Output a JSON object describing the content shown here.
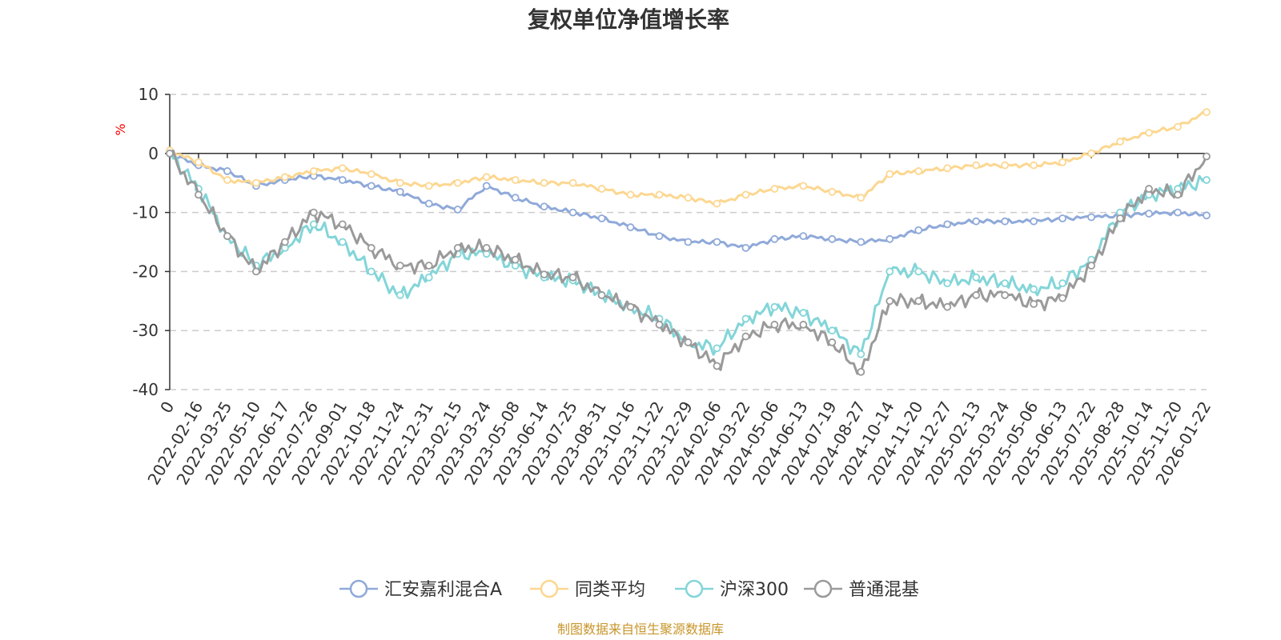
{
  "chart_data": {
    "type": "line",
    "title": "复权单位净值增长率",
    "ylabel": "%",
    "xlabel": "",
    "ylim": [
      -40,
      10
    ],
    "yticks": [
      10,
      0,
      -10,
      -20,
      -30,
      -40
    ],
    "grid": true,
    "legend_position": "bottom",
    "x_tick_labels": [
      "0",
      "2022-02-16",
      "2022-03-25",
      "2022-05-10",
      "2022-06-17",
      "2022-07-26",
      "2022-09-01",
      "2022-10-18",
      "2022-11-24",
      "2022-12-31",
      "2023-02-15",
      "2023-03-24",
      "2023-05-08",
      "2023-06-14",
      "2023-07-25",
      "2023-08-31",
      "2023-10-16",
      "2023-11-22",
      "2023-12-29",
      "2024-02-06",
      "2024-03-22",
      "2024-05-06",
      "2024-06-13",
      "2024-07-19",
      "2024-08-27",
      "2024-10-14",
      "2024-11-20",
      "2024-12-27",
      "2025-02-13",
      "2025-03-24",
      "2025-05-06",
      "2025-06-13",
      "2025-07-22",
      "2025-08-28",
      "2025-10-14",
      "2025-11-20",
      "2026-01-22"
    ],
    "series": [
      {
        "name": "汇安嘉利混合A",
        "color": "#8fa9d9",
        "values": [
          0,
          -2,
          -3,
          -5.5,
          -4.5,
          -3.8,
          -4.5,
          -5.5,
          -6.5,
          -8.5,
          -9.5,
          -5.5,
          -7.5,
          -9,
          -10,
          -11,
          -12.5,
          -14,
          -15,
          -15,
          -16,
          -14.5,
          -14,
          -14.5,
          -15,
          -14.5,
          -13,
          -12,
          -11.5,
          -11.5,
          -11.5,
          -11,
          -10.8,
          -10.5,
          -10.2,
          -10,
          -10.5
        ]
      },
      {
        "name": "同类平均",
        "color": "#fcd791",
        "values": [
          0.5,
          -1.5,
          -4.5,
          -5,
          -4,
          -3,
          -2.5,
          -3.5,
          -5,
          -5.5,
          -5,
          -4,
          -4.5,
          -5,
          -5,
          -6,
          -7,
          -7,
          -7.5,
          -8.5,
          -7,
          -6,
          -5.5,
          -6.5,
          -7.5,
          -3.5,
          -3,
          -2.5,
          -2,
          -2,
          -2,
          -1.5,
          0,
          2,
          3.5,
          4.5,
          7
        ]
      },
      {
        "name": "沪深300",
        "color": "#83d5d8",
        "values": [
          0,
          -6,
          -14,
          -19,
          -16,
          -12,
          -15,
          -20,
          -24,
          -21,
          -17,
          -17,
          -19,
          -21,
          -21.5,
          -24,
          -26,
          -28,
          -32,
          -33,
          -28,
          -26,
          -27,
          -30,
          -34,
          -20,
          -20,
          -22,
          -21,
          -22,
          -23,
          -22,
          -18,
          -10,
          -7,
          -6,
          -4.5
        ]
      },
      {
        "name": "普通混基",
        "color": "#9a9a9a",
        "values": [
          0,
          -7,
          -14,
          -20,
          -15,
          -10,
          -12,
          -16,
          -19,
          -19,
          -16,
          -16,
          -18,
          -20.5,
          -21,
          -24,
          -26,
          -29,
          -32,
          -36,
          -31,
          -29,
          -29,
          -32,
          -37,
          -25,
          -25,
          -26,
          -24,
          -24,
          -25.5,
          -24.5,
          -19,
          -11,
          -6,
          -7,
          -0.5
        ]
      }
    ]
  },
  "source_note": "制图数据来自恒生聚源数据库",
  "source_note_color": "#c8952a"
}
